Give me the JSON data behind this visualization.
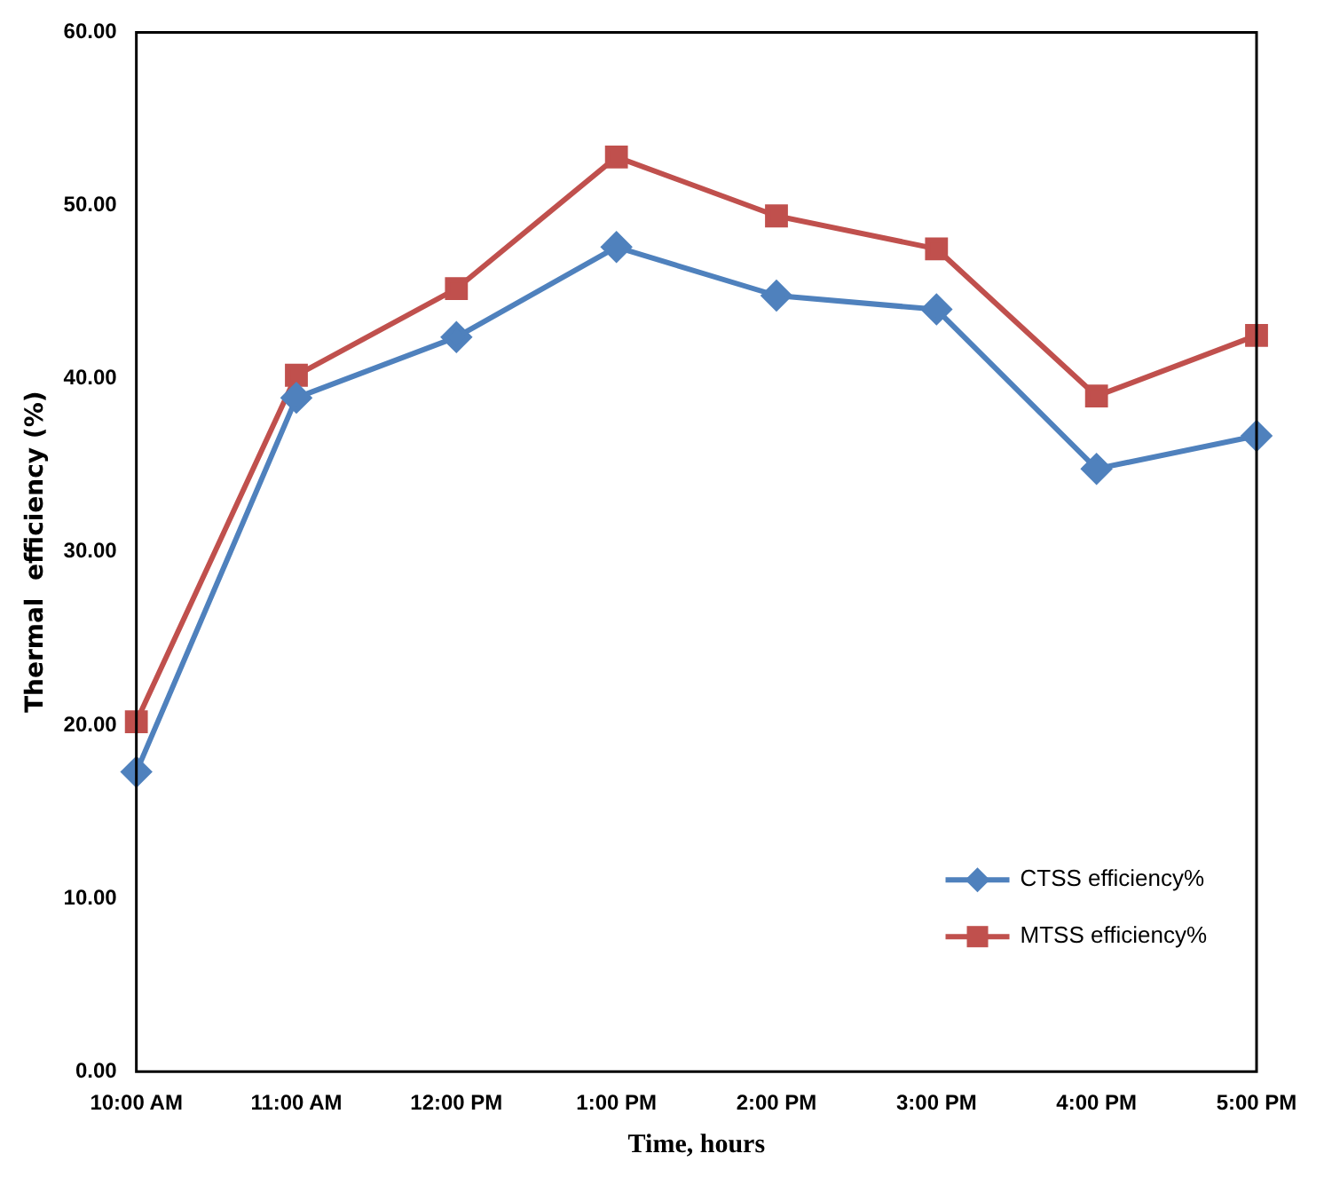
{
  "chart_data": {
    "type": "line",
    "xlabel": "Time, hours",
    "ylabel": "Thermal  efficiency (%)",
    "categories": [
      "10:00 AM",
      "11:00 AM",
      "12:00 PM",
      "1:00 PM",
      "2:00 PM",
      "3:00 PM",
      "4:00 PM",
      "5:00 PM"
    ],
    "series": [
      {
        "name": "CTSS efficiency%",
        "color": "#4f81bd",
        "marker": "diamond",
        "values": [
          17.3,
          38.9,
          42.4,
          47.6,
          44.8,
          44.0,
          34.8,
          36.7
        ]
      },
      {
        "name": "MTSS efficiency%",
        "color": "#c0504d",
        "marker": "square",
        "values": [
          20.2,
          40.2,
          45.2,
          52.8,
          49.4,
          47.5,
          39.0,
          42.5
        ]
      }
    ],
    "ylim": [
      0,
      60
    ],
    "yticks": [
      {
        "value": 0,
        "label": "0.00"
      },
      {
        "value": 10,
        "label": "10.00"
      },
      {
        "value": 20,
        "label": "20.00"
      },
      {
        "value": 30,
        "label": "30.00"
      },
      {
        "value": 40,
        "label": "40.00"
      },
      {
        "value": 50,
        "label": "50.00"
      },
      {
        "value": 60,
        "label": "60.00"
      }
    ],
    "grid": false,
    "legend": "bottom right"
  }
}
